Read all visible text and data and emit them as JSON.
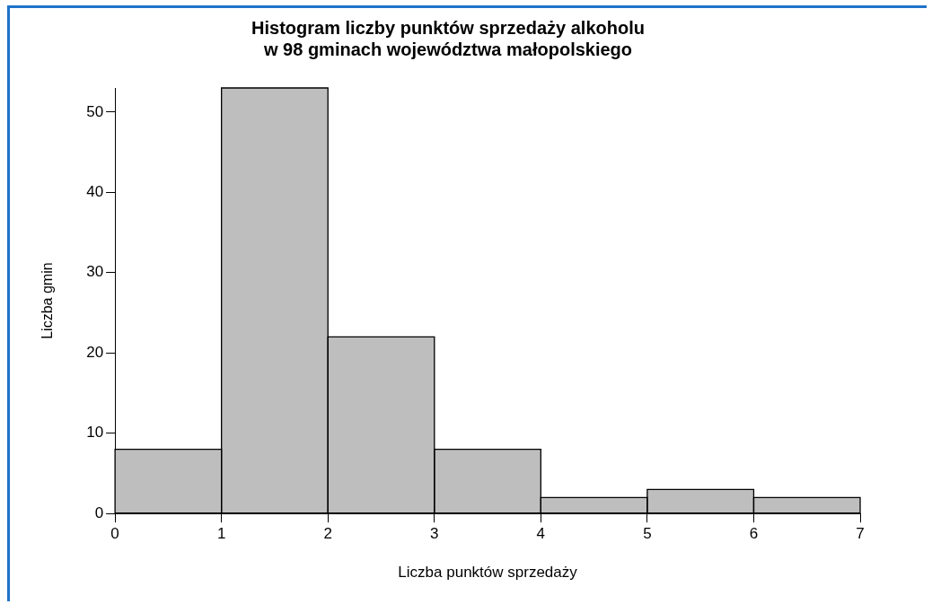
{
  "chart_data": {
    "type": "histogram",
    "title": "Histogram liczby punktów sprzedaży alkoholu\nw 98 gminach województwa małopolskiego",
    "xlabel": "Liczba punktów sprzedaży",
    "ylabel": "Liczba gmin",
    "bins": [
      0,
      1,
      2,
      3,
      4,
      5,
      6,
      7
    ],
    "values": [
      8,
      53,
      22,
      8,
      2,
      3,
      2
    ],
    "color": "#bebebe",
    "xlim": [
      0,
      7
    ],
    "xticks": [
      0,
      1,
      2,
      3,
      4,
      5,
      6,
      7
    ],
    "ylim": [
      0,
      53
    ],
    "yticks": [
      0,
      10,
      20,
      30,
      40,
      50
    ],
    "grid": false,
    "legend": false
  }
}
